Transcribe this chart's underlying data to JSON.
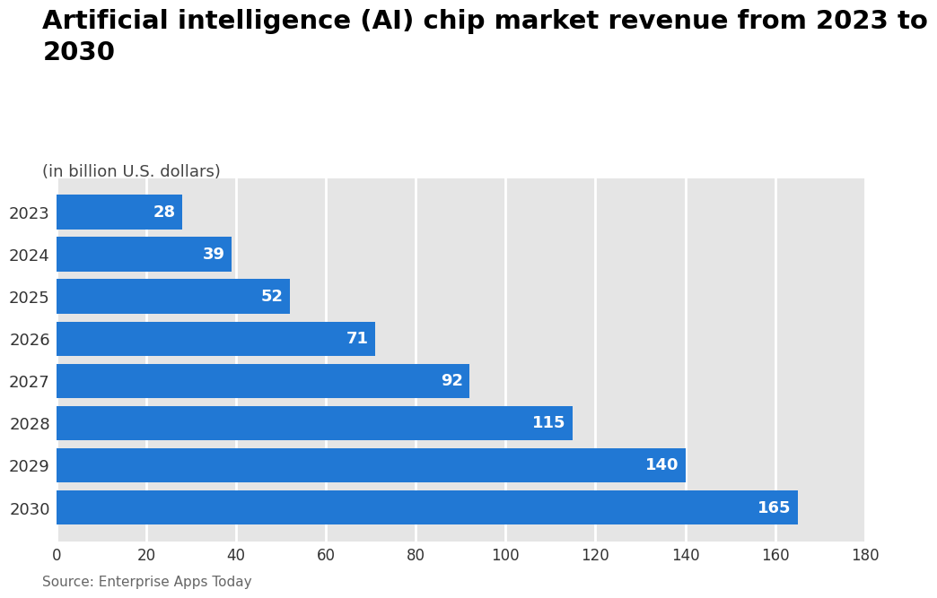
{
  "title": "Artificial intelligence (AI) chip market revenue from 2023 to\n2030",
  "subtitle": "(in billion U.S. dollars)",
  "source": "Source: Enterprise Apps Today",
  "years": [
    "2023",
    "2024",
    "2025",
    "2026",
    "2027",
    "2028",
    "2029",
    "2030"
  ],
  "values": [
    28,
    39,
    52,
    71,
    92,
    115,
    140,
    165
  ],
  "bar_color": "#2178d4",
  "label_color": "#ffffff",
  "background_color": "#ffffff",
  "plot_bg_color": "#e5e5e5",
  "grid_color": "#ffffff",
  "xlim": [
    0,
    180
  ],
  "xticks": [
    0,
    20,
    40,
    60,
    80,
    100,
    120,
    140,
    160,
    180
  ],
  "title_fontsize": 21,
  "subtitle_fontsize": 13,
  "label_fontsize": 13,
  "ytick_fontsize": 13,
  "xtick_fontsize": 12,
  "source_fontsize": 11,
  "bar_height": 0.82
}
